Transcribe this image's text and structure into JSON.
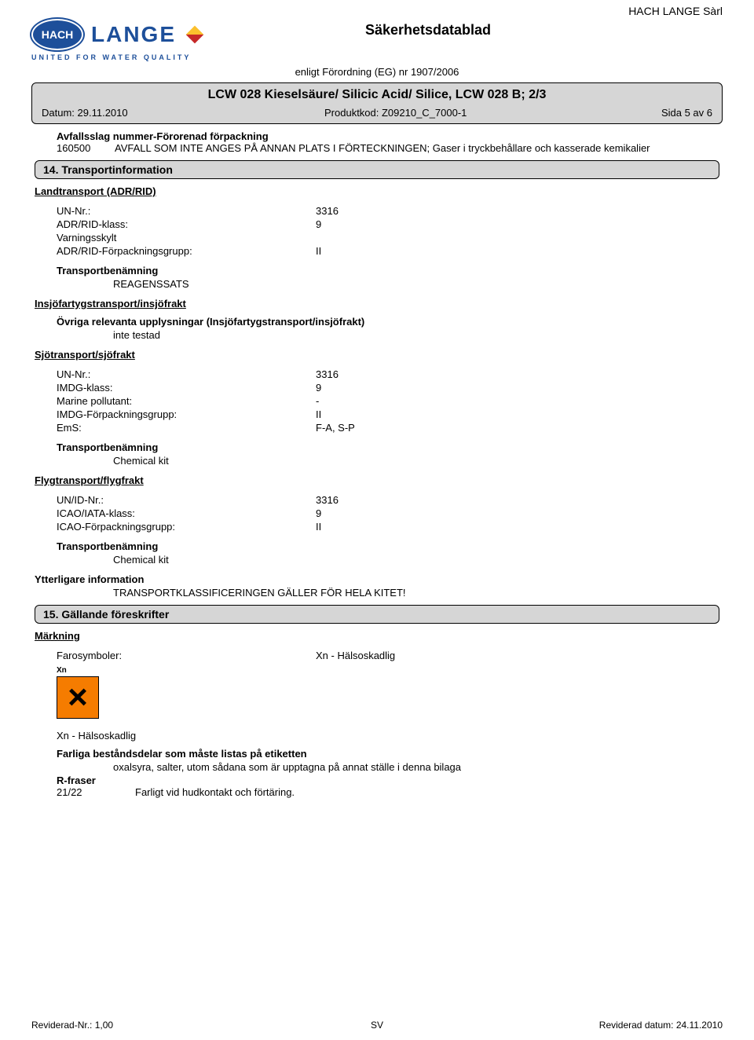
{
  "company_name": "HACH LANGE Sàrl",
  "logo": {
    "brand1": "HACH",
    "brand2": "LANGE",
    "tagline": "UNITED FOR WATER QUALITY"
  },
  "doc_title": "Säkerhetsdatablad",
  "regulation": "enligt Förordning (EG) nr 1907/2006",
  "product_title": "LCW 028 Kieselsäure/ Silicic Acid/ Silice,  LCW 028 B; 2/3",
  "meta": {
    "date_label": "Datum: 29.11.2010",
    "code_label": "Produktkod: Z09210_C_7000-1",
    "page_label": "Sida 5 av 6"
  },
  "waste": {
    "heading": "Avfallsslag nummer-Förorenad förpackning",
    "code": "160500",
    "desc": "AVFALL SOM INTE ANGES PÅ ANNAN PLATS I FÖRTECKNINGEN; Gaser i tryckbehållare och kasserade kemikalier"
  },
  "sec14": "14. Transportinformation",
  "land": {
    "heading": "Landtransport (ADR/RID)",
    "un_k": "UN-Nr.:",
    "un_v": "3316",
    "class_k": "ADR/RID-klass:",
    "class_v": "9",
    "warn_k": "Varningsskylt",
    "pack_k": "ADR/RID-Förpackningsgrupp:",
    "pack_v": "II",
    "tname_k": "Transportbenämning",
    "tname_v": "REAGENSSATS"
  },
  "inland": {
    "heading": "Insjöfartygstransport/insjöfrakt",
    "other_k": "Övriga relevanta upplysningar (Insjöfartygstransport/insjöfrakt)",
    "other_v": "inte testad"
  },
  "sea": {
    "heading": "Sjötransport/sjöfrakt",
    "un_k": "UN-Nr.:",
    "un_v": "3316",
    "class_k": "IMDG-klass:",
    "class_v": "9",
    "mp_k": "Marine pollutant:",
    "mp_v": "-",
    "pack_k": "IMDG-Förpackningsgrupp:",
    "pack_v": "II",
    "ems_k": "EmS:",
    "ems_v": "F-A, S-P",
    "tname_k": "Transportbenämning",
    "tname_v": "Chemical kit"
  },
  "air": {
    "heading": "Flygtransport/flygfrakt",
    "un_k": "UN/ID-Nr.:",
    "un_v": "3316",
    "class_k": "ICAO/IATA-klass:",
    "class_v": "9",
    "pack_k": "ICAO-Förpackningsgrupp:",
    "pack_v": "II",
    "tname_k": "Transportbenämning",
    "tname_v": "Chemical kit"
  },
  "further": {
    "heading": "Ytterligare information",
    "text": "TRANSPORTKLASSIFICERINGEN GÄLLER FÖR HELA KITET!"
  },
  "sec15": "15. Gällande föreskrifter",
  "labelling": {
    "heading": "Märkning",
    "sym_k": "Farosymboler:",
    "sym_v": "Xn - Hälsoskadlig",
    "haz_code": "Xn",
    "haz_text": "Xn - Hälsoskadlig",
    "danger_k": "Farliga beståndsdelar som måste listas på etiketten",
    "danger_v": "oxalsyra, salter, utom sådana som är upptagna på annat ställe i denna bilaga",
    "r_heading": "R-fraser",
    "r_code": "21/22",
    "r_text": "Farligt vid hudkontakt och förtäring."
  },
  "footer": {
    "left": "Reviderad-Nr.: 1,00",
    "center": "SV",
    "right": "Reviderad datum: 24.11.2010"
  }
}
